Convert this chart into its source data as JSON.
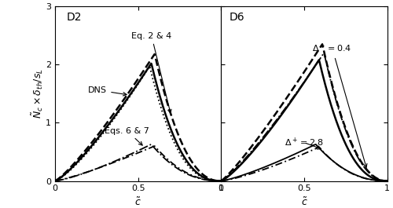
{
  "ylim": [
    0,
    3
  ],
  "xlim": [
    0,
    1
  ],
  "yticks": [
    0,
    1,
    2,
    3
  ],
  "xticks": [
    0,
    0.5,
    1
  ],
  "ylabel": "$\\tilde{N}_c \\times \\delta_{th}/s_L$",
  "xlabel": "$\\tilde{c}$",
  "panel_left_label": "D2",
  "panel_right_label": "D6",
  "lw_thick": 1.8,
  "lw_thin": 1.3,
  "fontsize_label": 9,
  "fontsize_annot": 8,
  "fontsize_tick": 8
}
